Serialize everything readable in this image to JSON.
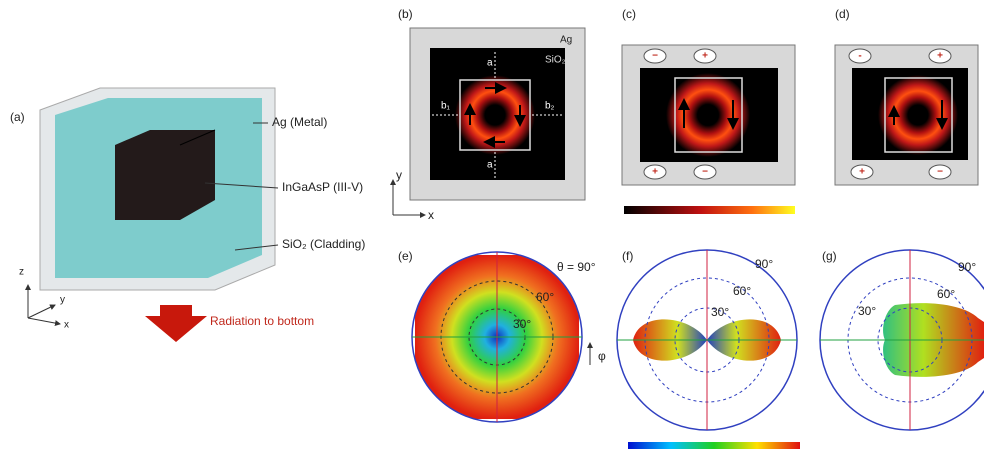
{
  "panels": {
    "a": {
      "label": "(a)",
      "callouts": [
        "Ag (Metal)",
        "InGaAsP (III-V)",
        "SiO₂ (Cladding)"
      ],
      "axes": [
        "z",
        "y",
        "x"
      ],
      "arrow_text": "Radiation to bottom"
    },
    "b": {
      "label": "(b)",
      "outer": "Ag",
      "inner": "SiO₂",
      "gaps": [
        "a",
        "a",
        "b₁",
        "b₂"
      ],
      "axes": [
        "y",
        "x"
      ]
    },
    "c": {
      "label": "(c)",
      "charges_top": [
        "−",
        "+"
      ],
      "charges_bottom": [
        "+",
        "−"
      ]
    },
    "d": {
      "label": "(d)",
      "charges_top": [
        "-",
        "+"
      ],
      "charges_bottom": [
        "+",
        "−"
      ]
    },
    "e": {
      "label": "(e)",
      "angles": [
        "θ = 90°",
        "60°",
        "30°"
      ],
      "phi": "φ"
    },
    "f": {
      "label": "(f)",
      "angles": [
        "90°",
        "60°",
        "30°"
      ]
    },
    "g": {
      "label": "(g)",
      "angles": [
        "90°",
        "60°",
        "30°"
      ]
    }
  }
}
